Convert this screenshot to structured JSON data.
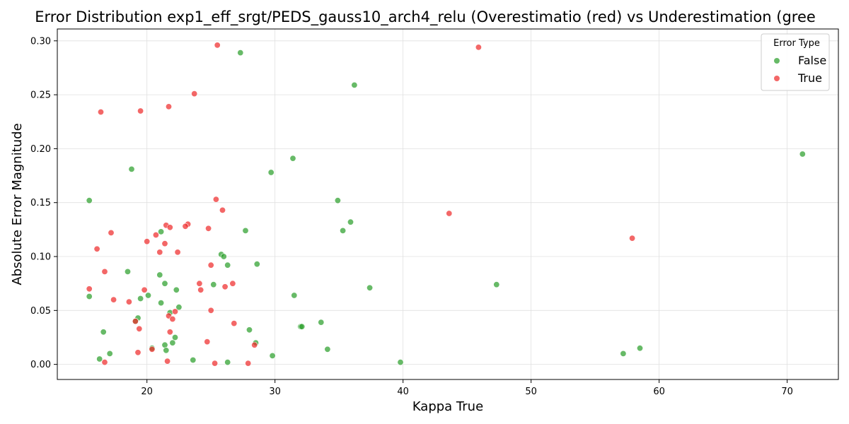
{
  "chart_data": {
    "type": "scatter",
    "title": "Error Distribution exp1_eff_srgt/PEDS_gauss10_arch4_relu (Overestimatio (red) vs Underestimation (gree",
    "xlabel": "Kappa True",
    "ylabel": "Absolute Error Magnitude",
    "xlim": [
      13,
      74
    ],
    "ylim": [
      -0.014,
      0.311
    ],
    "xticks": [
      20,
      30,
      40,
      50,
      60,
      70
    ],
    "yticks": [
      0.0,
      0.05,
      0.1,
      0.15,
      0.2,
      0.25,
      0.3
    ],
    "xtick_labels": [
      "20",
      "30",
      "40",
      "50",
      "60",
      "70"
    ],
    "ytick_labels": [
      "0.00",
      "0.05",
      "0.10",
      "0.15",
      "0.20",
      "0.25",
      "0.30"
    ],
    "grid": true,
    "legend": {
      "title": "Error Type",
      "position": "top-right",
      "entries": [
        {
          "label": "False",
          "color": "#2ca02c"
        },
        {
          "label": "True",
          "color": "#ef2d2d"
        }
      ]
    },
    "series": [
      {
        "name": "False",
        "color": "#2ca02c",
        "points": [
          [
            27.3,
            0.289
          ],
          [
            36.2,
            0.259
          ],
          [
            71.2,
            0.195
          ],
          [
            31.4,
            0.191
          ],
          [
            18.8,
            0.181
          ],
          [
            29.7,
            0.178
          ],
          [
            15.5,
            0.152
          ],
          [
            34.9,
            0.152
          ],
          [
            35.9,
            0.132
          ],
          [
            35.3,
            0.124
          ],
          [
            27.7,
            0.124
          ],
          [
            21.1,
            0.123
          ],
          [
            25.8,
            0.102
          ],
          [
            26.0,
            0.1
          ],
          [
            26.3,
            0.092
          ],
          [
            28.6,
            0.093
          ],
          [
            18.5,
            0.086
          ],
          [
            21.0,
            0.083
          ],
          [
            21.4,
            0.075
          ],
          [
            25.2,
            0.074
          ],
          [
            47.3,
            0.074
          ],
          [
            37.4,
            0.071
          ],
          [
            22.3,
            0.069
          ],
          [
            20.1,
            0.064
          ],
          [
            31.5,
            0.064
          ],
          [
            15.5,
            0.063
          ],
          [
            19.5,
            0.061
          ],
          [
            21.1,
            0.057
          ],
          [
            22.5,
            0.053
          ],
          [
            21.8,
            0.048
          ],
          [
            19.3,
            0.043
          ],
          [
            33.6,
            0.039
          ],
          [
            32.0,
            0.035
          ],
          [
            32.1,
            0.035
          ],
          [
            28.0,
            0.032
          ],
          [
            16.6,
            0.03
          ],
          [
            22.2,
            0.025
          ],
          [
            22.0,
            0.02
          ],
          [
            28.5,
            0.02
          ],
          [
            21.4,
            0.018
          ],
          [
            58.5,
            0.015
          ],
          [
            20.4,
            0.015
          ],
          [
            34.1,
            0.014
          ],
          [
            21.5,
            0.013
          ],
          [
            17.1,
            0.01
          ],
          [
            57.2,
            0.01
          ],
          [
            29.8,
            0.008
          ],
          [
            16.3,
            0.005
          ],
          [
            23.6,
            0.004
          ],
          [
            26.3,
            0.002
          ],
          [
            39.8,
            0.002
          ],
          [
            19.1,
            0.04
          ]
        ]
      },
      {
        "name": "True",
        "color": "#ef2d2d",
        "points": [
          [
            25.5,
            0.296
          ],
          [
            45.9,
            0.294
          ],
          [
            23.7,
            0.251
          ],
          [
            21.7,
            0.239
          ],
          [
            16.4,
            0.234
          ],
          [
            19.5,
            0.235
          ],
          [
            25.4,
            0.153
          ],
          [
            25.9,
            0.143
          ],
          [
            43.6,
            0.14
          ],
          [
            23.2,
            0.13
          ],
          [
            23.0,
            0.128
          ],
          [
            21.5,
            0.129
          ],
          [
            21.8,
            0.127
          ],
          [
            24.8,
            0.126
          ],
          [
            17.2,
            0.122
          ],
          [
            20.7,
            0.12
          ],
          [
            57.9,
            0.117
          ],
          [
            20.0,
            0.114
          ],
          [
            21.4,
            0.112
          ],
          [
            16.1,
            0.107
          ],
          [
            21.0,
            0.104
          ],
          [
            22.4,
            0.104
          ],
          [
            25.0,
            0.092
          ],
          [
            16.7,
            0.086
          ],
          [
            24.1,
            0.075
          ],
          [
            26.7,
            0.075
          ],
          [
            26.1,
            0.072
          ],
          [
            15.5,
            0.07
          ],
          [
            19.8,
            0.069
          ],
          [
            24.2,
            0.069
          ],
          [
            17.4,
            0.06
          ],
          [
            18.6,
            0.058
          ],
          [
            25.0,
            0.05
          ],
          [
            22.2,
            0.049
          ],
          [
            21.7,
            0.045
          ],
          [
            22.0,
            0.042
          ],
          [
            19.1,
            0.04
          ],
          [
            26.8,
            0.038
          ],
          [
            19.4,
            0.033
          ],
          [
            21.8,
            0.03
          ],
          [
            24.7,
            0.021
          ],
          [
            28.4,
            0.018
          ],
          [
            20.4,
            0.014
          ],
          [
            19.3,
            0.011
          ],
          [
            21.6,
            0.003
          ],
          [
            16.7,
            0.002
          ],
          [
            25.3,
            0.001
          ],
          [
            27.9,
            0.001
          ]
        ]
      }
    ]
  }
}
